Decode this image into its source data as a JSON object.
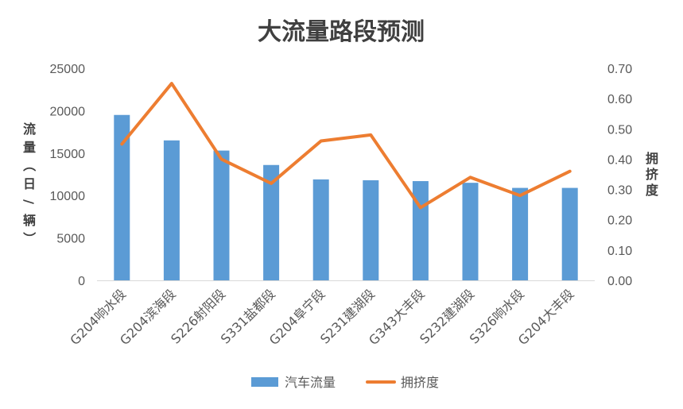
{
  "chart_data": {
    "type": "bar",
    "title": "大流量路段预测",
    "categories": [
      "G204响水段",
      "G204滨海段",
      "S226射阳段",
      "S331盐都段",
      "G204阜宁段",
      "S231建湖段",
      "G343大丰段",
      "S232建湖段",
      "S326响水段",
      "G204大丰段"
    ],
    "series": [
      {
        "name": "汽车流量",
        "type": "bar",
        "axis": "left",
        "color": "#5B9BD5",
        "values": [
          19500,
          16500,
          15300,
          13600,
          11900,
          11800,
          11700,
          11500,
          10900,
          10900
        ]
      },
      {
        "name": "拥挤度",
        "type": "line",
        "axis": "right",
        "color": "#ED7D31",
        "values": [
          0.45,
          0.65,
          0.4,
          0.32,
          0.46,
          0.48,
          0.24,
          0.34,
          0.28,
          0.36
        ]
      }
    ],
    "y_left": {
      "label": "流量（日/辆）",
      "range": [
        0,
        25000
      ],
      "ticks": [
        "0",
        "5000",
        "10000",
        "15000",
        "20000",
        "25000"
      ]
    },
    "y_right": {
      "label": "拥挤度",
      "range": [
        0,
        0.7
      ],
      "ticks": [
        "0.00",
        "0.10",
        "0.20",
        "0.30",
        "0.40",
        "0.50",
        "0.60",
        "0.70"
      ]
    },
    "grid": false,
    "legend_position": "bottom"
  }
}
